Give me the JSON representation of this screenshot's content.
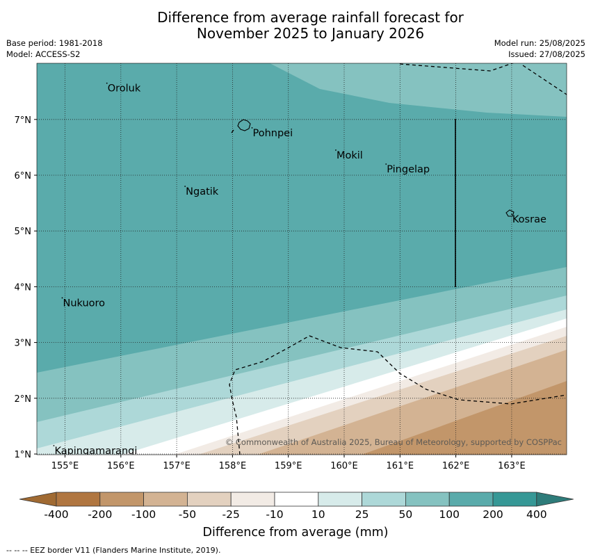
{
  "title_line1": "Difference from average rainfall forecast for",
  "title_line2": "November 2025 to January 2026",
  "meta_left": {
    "base_period": "Base period: 1981-2018",
    "model": "Model: ACCESS-S2"
  },
  "meta_right": {
    "model_run": "Model run: 25/08/2025",
    "issued": "Issued: 27/08/2025"
  },
  "copyright": "© Commonwealth of Australia 2025, Bureau of Meteorology, supported by COSPPac",
  "lon_ticks": [
    "155°E",
    "156°E",
    "157°E",
    "158°E",
    "159°E",
    "160°E",
    "161°E",
    "162°E",
    "163°E"
  ],
  "lat_ticks": [
    "1°N",
    "2°N",
    "3°N",
    "4°N",
    "5°N",
    "6°N",
    "7°N"
  ],
  "places": [
    {
      "name": "Oroluk",
      "lon": 155.75,
      "lat": 7.6
    },
    {
      "name": "Pohnpei",
      "lon": 158.35,
      "lat": 6.8
    },
    {
      "name": "Mokil",
      "lon": 159.85,
      "lat": 6.4
    },
    {
      "name": "Pingelap",
      "lon": 160.75,
      "lat": 6.15
    },
    {
      "name": "Ngatik",
      "lon": 157.15,
      "lat": 5.75
    },
    {
      "name": "Kosrae",
      "lon": 163.0,
      "lat": 5.25
    },
    {
      "name": "Nukuoro",
      "lon": 154.95,
      "lat": 3.75
    },
    {
      "name": "Kapingamarangi",
      "lon": 154.8,
      "lat": 1.1
    }
  ],
  "colorbar": {
    "ticks": [
      "-400",
      "-200",
      "-100",
      "-50",
      "-25",
      "-10",
      "10",
      "25",
      "50",
      "100",
      "200",
      "400"
    ],
    "colors": [
      "#a06a32",
      "#b07640",
      "#c2966a",
      "#d3b393",
      "#e3d1bf",
      "#f2ebe5",
      "#ffffff",
      "#d7ebea",
      "#add8d8",
      "#85c2c0",
      "#5aabab",
      "#369896",
      "#2e7c7a"
    ],
    "label": "Difference from average (mm)"
  },
  "footer": "--  --  -- EEZ border V11 (Flanders Marine Institute, 2019).",
  "colors": {
    "grid": "#222222",
    "frame": "#000000"
  }
}
